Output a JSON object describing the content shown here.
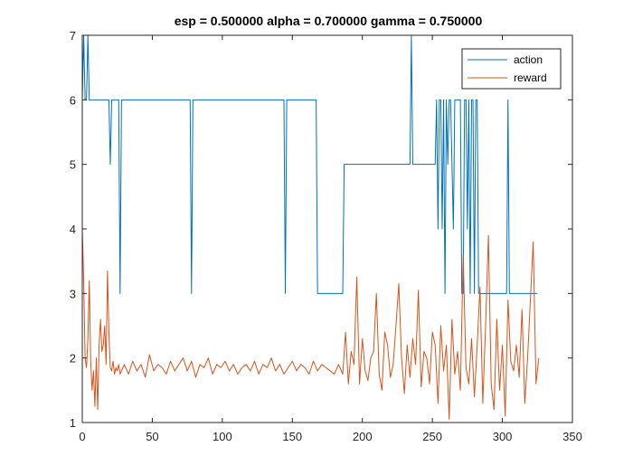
{
  "chart_data": {
    "type": "line",
    "title": "esp = 0.500000 alpha = 0.700000 gamma = 0.750000",
    "xlabel": "",
    "ylabel": "",
    "xlim": [
      0,
      350
    ],
    "ylim": [
      1,
      7
    ],
    "x_ticks": [
      0,
      50,
      100,
      150,
      200,
      250,
      300,
      350
    ],
    "y_ticks": [
      1,
      2,
      3,
      4,
      5,
      6,
      7
    ],
    "x_tick_labels": [
      "0",
      "50",
      "100",
      "150",
      "200",
      "250",
      "300",
      "350"
    ],
    "y_tick_labels": [
      "1",
      "2",
      "3",
      "4",
      "5",
      "6",
      "7"
    ],
    "grid": false,
    "legend_position": "top-right",
    "series": [
      {
        "name": "action",
        "color": "#0072BD",
        "x": [
          0,
          1,
          2,
          3,
          4,
          5,
          6,
          7,
          18,
          19,
          20,
          21,
          22,
          26,
          27,
          28,
          29,
          30,
          77,
          78,
          79,
          80,
          144,
          145,
          146,
          147,
          167,
          168,
          169,
          170,
          186,
          187,
          188,
          234,
          235,
          236,
          237,
          252,
          253,
          254,
          255,
          256,
          257,
          258,
          259,
          260,
          261,
          262,
          263,
          264,
          265,
          266,
          267,
          268,
          269,
          270,
          271,
          272,
          273,
          274,
          275,
          276,
          277,
          278,
          279,
          280,
          281,
          282,
          283,
          284,
          285,
          286,
          287,
          288,
          303,
          304,
          305,
          306,
          307,
          325
        ],
        "values": [
          6,
          7,
          6,
          6,
          7,
          6,
          6,
          6,
          6,
          6,
          5,
          6,
          6,
          6,
          3,
          6,
          6,
          6,
          6,
          3,
          6,
          6,
          6,
          3,
          6,
          6,
          6,
          3,
          3,
          3,
          3,
          5,
          5,
          5,
          7,
          5,
          5,
          5,
          6,
          4,
          6,
          6,
          4,
          6,
          3,
          6,
          5,
          6,
          6,
          5,
          4,
          6,
          6,
          6,
          6,
          6,
          3,
          3,
          6,
          6,
          4,
          6,
          3,
          6,
          6,
          3,
          6,
          6,
          3,
          3,
          3,
          3,
          3,
          3,
          3,
          6,
          3,
          3,
          3,
          3
        ]
      },
      {
        "name": "reward",
        "color": "#D95319",
        "x": [
          0,
          1,
          2,
          3,
          4,
          5,
          6,
          7,
          8,
          9,
          10,
          11,
          12,
          13,
          14,
          15,
          16,
          17,
          18,
          19,
          20,
          21,
          22,
          23,
          24,
          25,
          26,
          27,
          28,
          29,
          30,
          33,
          36,
          39,
          42,
          45,
          48,
          51,
          54,
          57,
          60,
          63,
          66,
          69,
          72,
          75,
          78,
          81,
          84,
          87,
          90,
          93,
          96,
          99,
          102,
          105,
          108,
          111,
          114,
          117,
          120,
          123,
          126,
          129,
          132,
          135,
          138,
          141,
          144,
          147,
          150,
          153,
          156,
          159,
          162,
          165,
          168,
          171,
          174,
          177,
          180,
          183,
          186,
          188,
          190,
          192,
          194,
          196,
          198,
          200,
          202,
          204,
          206,
          208,
          210,
          212,
          214,
          216,
          218,
          220,
          222,
          224,
          226,
          228,
          230,
          232,
          234,
          236,
          238,
          240,
          242,
          244,
          246,
          248,
          250,
          252,
          254,
          256,
          258,
          260,
          262,
          264,
          266,
          268,
          270,
          272,
          274,
          276,
          278,
          280,
          282,
          284,
          286,
          288,
          290,
          292,
          294,
          296,
          298,
          300,
          302,
          304,
          306,
          308,
          310,
          312,
          314,
          316,
          318,
          320,
          322,
          324,
          326
        ],
        "values": [
          4.0,
          3.2,
          2.0,
          1.85,
          2.3,
          3.2,
          1.95,
          1.5,
          1.8,
          1.25,
          2.0,
          1.2,
          2.2,
          2.6,
          2.1,
          2.2,
          2.5,
          1.9,
          3.35,
          2.4,
          1.85,
          1.8,
          1.95,
          1.75,
          1.85,
          1.8,
          1.9,
          1.75,
          1.8,
          1.85,
          1.9,
          1.75,
          1.95,
          1.8,
          1.9,
          1.7,
          2.05,
          1.8,
          1.9,
          1.85,
          1.75,
          1.95,
          1.8,
          1.9,
          2.0,
          1.8,
          1.95,
          1.7,
          1.9,
          1.85,
          2.0,
          1.75,
          1.9,
          1.85,
          1.95,
          1.8,
          1.9,
          1.75,
          1.85,
          1.9,
          1.8,
          1.95,
          1.75,
          1.9,
          1.85,
          2.0,
          1.8,
          1.9,
          1.75,
          1.85,
          1.95,
          1.8,
          1.9,
          1.85,
          1.75,
          1.95,
          1.8,
          1.9,
          1.85,
          1.8,
          1.75,
          1.9,
          1.75,
          2.4,
          1.6,
          2.1,
          1.9,
          3.25,
          1.6,
          2.3,
          1.8,
          1.65,
          2.0,
          2.1,
          3.0,
          1.75,
          1.5,
          2.4,
          2.2,
          1.7,
          1.9,
          2.5,
          3.15,
          2.0,
          1.45,
          2.2,
          1.7,
          2.3,
          1.9,
          3.05,
          1.55,
          2.1,
          2.0,
          1.6,
          2.4,
          2.2,
          1.3,
          2.5,
          1.8,
          2.2,
          1.05,
          2.6,
          1.75,
          2.1,
          1.5,
          3.6,
          1.85,
          1.6,
          2.3,
          1.4,
          2.2,
          3.1,
          1.3,
          2.5,
          3.9,
          1.6,
          1.2,
          2.6,
          1.5,
          2.2,
          1.1,
          2.9,
          1.95,
          1.8,
          2.2,
          1.7,
          2.75,
          1.3,
          2.0,
          2.9,
          3.8,
          1.6,
          2.0
        ]
      }
    ]
  }
}
